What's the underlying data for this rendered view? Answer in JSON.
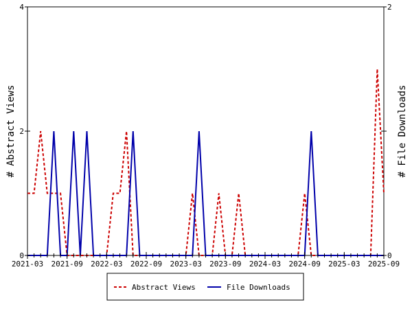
{
  "chart_data": {
    "type": "line",
    "title": "",
    "xlabel": "",
    "ylabel_left": "# Abstract Views",
    "ylabel_right": "# File Downloads",
    "x_range": [
      "2021-03",
      "2025-09"
    ],
    "ylim_left": [
      0,
      4
    ],
    "ylim_right": [
      0,
      2
    ],
    "y_ticks_left": [
      "0",
      "2",
      "4"
    ],
    "y_ticks_right": [
      "0",
      "1",
      "2"
    ],
    "x_tick_labels": [
      "2021-03",
      "2021-09",
      "2022-03",
      "2022-09",
      "2023-03",
      "2023-09",
      "2024-03",
      "2024-09",
      "2025-03",
      "2025-09"
    ],
    "grid": false,
    "legend_position": "bottom",
    "series": [
      {
        "name": "Abstract Views",
        "axis": "left",
        "color": "#cc0000",
        "style": "dashed",
        "x": [
          "2021-03",
          "2021-04",
          "2021-05",
          "2021-06",
          "2021-07",
          "2021-08",
          "2021-09",
          "2021-10",
          "2021-11",
          "2021-12",
          "2022-01",
          "2022-02",
          "2022-03",
          "2022-04",
          "2022-05",
          "2022-06",
          "2022-07",
          "2022-08",
          "2022-09",
          "2022-10",
          "2022-11",
          "2022-12",
          "2023-01",
          "2023-02",
          "2023-03",
          "2023-04",
          "2023-05",
          "2023-06",
          "2023-07",
          "2023-08",
          "2023-09",
          "2023-10",
          "2023-11",
          "2023-12",
          "2024-01",
          "2024-02",
          "2024-03",
          "2024-04",
          "2024-05",
          "2024-06",
          "2024-07",
          "2024-08",
          "2024-09",
          "2024-10",
          "2024-11",
          "2024-12",
          "2025-01",
          "2025-02",
          "2025-03",
          "2025-04",
          "2025-05",
          "2025-06",
          "2025-07",
          "2025-08",
          "2025-09"
        ],
        "values": [
          1,
          1,
          2,
          1,
          1,
          1,
          0,
          0,
          0,
          0,
          0,
          0,
          0,
          1,
          1,
          2,
          0,
          0,
          0,
          0,
          0,
          0,
          0,
          0,
          0,
          1,
          0,
          0,
          0,
          1,
          0,
          0,
          1,
          0,
          0,
          0,
          0,
          0,
          0,
          0,
          0,
          0,
          1,
          0,
          0,
          0,
          0,
          0,
          0,
          0,
          0,
          0,
          0,
          3,
          1
        ]
      },
      {
        "name": "File Downloads",
        "axis": "right",
        "color": "#0000aa",
        "style": "solid",
        "x": [
          "2021-03",
          "2021-04",
          "2021-05",
          "2021-06",
          "2021-07",
          "2021-08",
          "2021-09",
          "2021-10",
          "2021-11",
          "2021-12",
          "2022-01",
          "2022-02",
          "2022-03",
          "2022-04",
          "2022-05",
          "2022-06",
          "2022-07",
          "2022-08",
          "2022-09",
          "2022-10",
          "2022-11",
          "2022-12",
          "2023-01",
          "2023-02",
          "2023-03",
          "2023-04",
          "2023-05",
          "2023-06",
          "2023-07",
          "2023-08",
          "2023-09",
          "2023-10",
          "2023-11",
          "2023-12",
          "2024-01",
          "2024-02",
          "2024-03",
          "2024-04",
          "2024-05",
          "2024-06",
          "2024-07",
          "2024-08",
          "2024-09",
          "2024-10",
          "2024-11",
          "2024-12",
          "2025-01",
          "2025-02",
          "2025-03",
          "2025-04",
          "2025-05",
          "2025-06",
          "2025-07",
          "2025-08",
          "2025-09"
        ],
        "values": [
          0,
          0,
          0,
          0,
          1,
          0,
          0,
          1,
          0,
          1,
          0,
          0,
          0,
          0,
          0,
          0,
          1,
          0,
          0,
          0,
          0,
          0,
          0,
          0,
          0,
          0,
          1,
          0,
          0,
          0,
          0,
          0,
          0,
          0,
          0,
          0,
          0,
          0,
          0,
          0,
          0,
          0,
          0,
          1,
          0,
          0,
          0,
          0,
          0,
          0,
          0,
          0,
          0,
          0,
          0
        ]
      }
    ]
  }
}
